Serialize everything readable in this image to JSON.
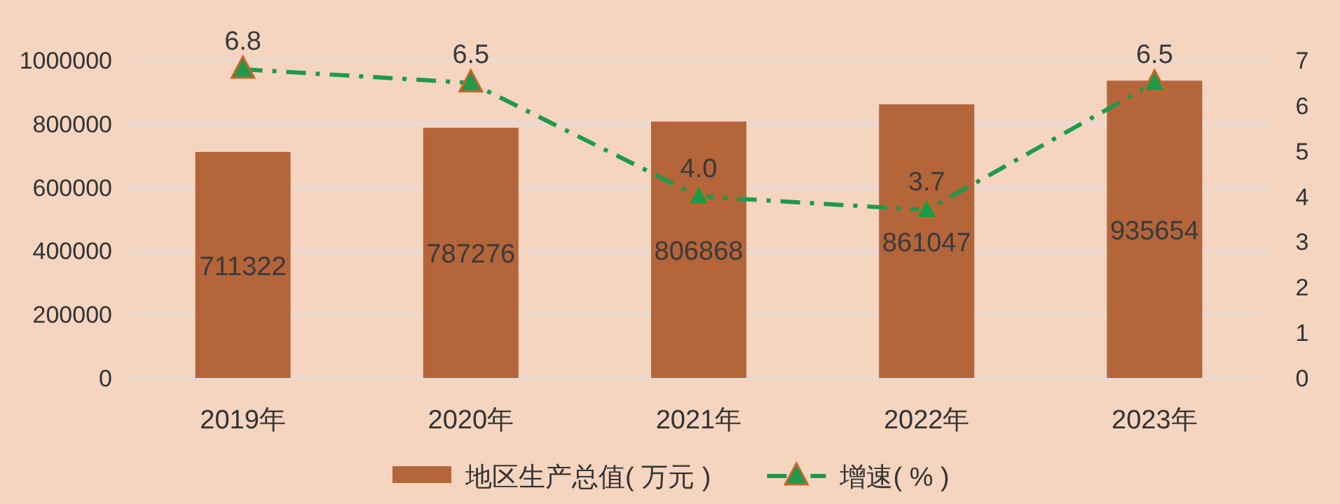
{
  "chart_data": {
    "type": "bar",
    "categories": [
      "2019年",
      "2020年",
      "2021年",
      "2022年",
      "2023年"
    ],
    "series": [
      {
        "name": "地区生产总值( 万元 )",
        "color": "#b5653a",
        "values": [
          711322,
          787276,
          806868,
          861047,
          935654
        ]
      },
      {
        "name": "增速( % )",
        "type": "line",
        "axis": "y2",
        "color": "#1e9a4a",
        "marker": "triangle",
        "line_style": "dashed",
        "values": [
          6.8,
          6.5,
          4.0,
          3.7,
          6.5
        ],
        "value_labels": [
          "6.8",
          "6.5",
          "4.0",
          "3.7",
          "6.5"
        ]
      }
    ],
    "ylim": [
      0,
      1000000
    ],
    "yticks": [
      0,
      200000,
      400000,
      600000,
      800000,
      1000000
    ],
    "y2lim": [
      0,
      7
    ],
    "y2ticks": [
      0,
      1,
      2,
      3,
      4,
      5,
      6,
      7
    ],
    "data_labels": true,
    "grid": "y",
    "legend": "bottom"
  }
}
